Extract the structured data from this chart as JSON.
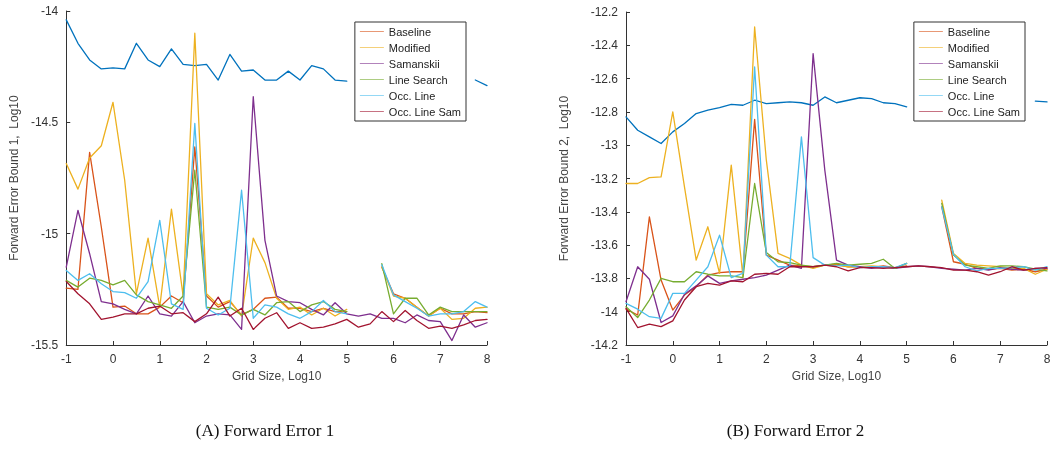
{
  "chart_data": [
    {
      "type": "line",
      "title": "(A) Forward Error 1",
      "xlabel": "Grid Size, Log10",
      "ylabel": "Forward Error Bound 1,  Log10",
      "legend": "top right",
      "grid": false,
      "marker": "none",
      "line_style": "solid",
      "xlim": [
        -1,
        8
      ],
      "xticks": [
        -1,
        0,
        1,
        2,
        3,
        4,
        5,
        6,
        7,
        8
      ],
      "ylim": [
        -15.5,
        -14
      ],
      "yticks": [
        -15.5,
        -15,
        -14.5,
        -14
      ],
      "x": [
        -1,
        -0.75,
        -0.5,
        -0.25,
        0,
        0.25,
        0.5,
        0.75,
        1,
        1.25,
        1.5,
        1.75,
        2,
        2.25,
        2.5,
        2.75,
        3,
        3.25,
        3.5,
        3.75,
        4,
        4.25,
        4.5,
        4.75,
        5,
        5.25,
        5.5,
        5.75,
        6,
        6.25,
        6.5,
        6.75,
        7,
        7.25,
        7.5,
        7.75,
        8
      ],
      "series": [
        {
          "color": "#0072bd",
          "values": [
            -14.04,
            -14.145,
            -14.22,
            -14.26,
            -14.255,
            -14.26,
            -14.145,
            -14.22,
            -14.25,
            -14.17,
            -14.24,
            -14.245,
            -14.24,
            -14.31,
            -14.195,
            -14.27,
            -14.265,
            -14.31,
            -14.31,
            -14.27,
            -14.31,
            -14.245,
            -14.26,
            -14.31,
            -14.315,
            null,
            null,
            null,
            null,
            null,
            null,
            null,
            null,
            null,
            null,
            -14.31,
            -14.335
          ]
        },
        {
          "name": "Baseline",
          "color": "#d95319",
          "values": [
            -15.245,
            -15.25,
            -14.635,
            -14.97,
            -15.33,
            -15.325,
            -15.36,
            -15.36,
            -15.33,
            -15.28,
            -15.31,
            -14.61,
            -15.28,
            -15.33,
            -15.305,
            -15.365,
            -15.34,
            -15.29,
            -15.285,
            -15.335,
            -15.335,
            -15.35,
            -15.335,
            -15.35,
            -15.35,
            null,
            null,
            -15.15,
            -15.27,
            -15.29,
            -15.33,
            -15.37,
            -15.335,
            -15.36,
            -15.36,
            -15.35,
            -15.355
          ]
        },
        {
          "name": "Modified",
          "color": "#edb120",
          "values": [
            -14.685,
            -14.8,
            -14.66,
            -14.605,
            -14.41,
            -14.76,
            -15.27,
            -15.02,
            -15.33,
            -14.89,
            -15.28,
            -14.1,
            -15.27,
            -15.32,
            -15.3,
            -15.37,
            -15.02,
            -15.13,
            -15.29,
            -15.34,
            -15.33,
            -15.365,
            -15.335,
            -15.37,
            -15.34,
            null,
            null,
            -15.15,
            -15.28,
            -15.29,
            -15.33,
            -15.37,
            -15.335,
            -15.385,
            -15.38,
            -15.335,
            -15.33
          ]
        },
        {
          "name": "Samanskii",
          "color": "#7e2f8e",
          "values": [
            -15.15,
            -14.895,
            -15.09,
            -15.305,
            -15.315,
            -15.34,
            -15.36,
            -15.28,
            -15.36,
            -15.37,
            -15.305,
            -15.4,
            -15.37,
            -15.36,
            -15.365,
            -15.43,
            -14.385,
            -15.03,
            -15.28,
            -15.305,
            -15.31,
            -15.34,
            -15.365,
            -15.31,
            -15.36,
            -15.37,
            -15.36,
            -15.38,
            -15.38,
            -15.4,
            -15.365,
            -15.39,
            -15.395,
            -15.48,
            -15.365,
            -15.42,
            -15.4
          ]
        },
        {
          "name": "Line Search",
          "color": "#77ac30",
          "values": [
            -15.21,
            -15.24,
            -15.2,
            -15.21,
            -15.23,
            -15.21,
            -15.275,
            -15.305,
            -15.32,
            -15.335,
            -15.28,
            -14.715,
            -15.33,
            -15.34,
            -15.33,
            -15.365,
            -15.34,
            -15.365,
            -15.31,
            -15.305,
            -15.35,
            -15.32,
            -15.305,
            -15.34,
            -15.35,
            null,
            null,
            -15.135,
            -15.36,
            -15.29,
            -15.29,
            -15.365,
            -15.33,
            -15.35,
            -15.35,
            -15.35,
            -15.35
          ]
        },
        {
          "name": "Occ. Line",
          "color": "#4dbeee",
          "values": [
            -15.165,
            -15.21,
            -15.18,
            -15.225,
            -15.26,
            -15.265,
            -15.29,
            -15.215,
            -14.94,
            -15.315,
            -15.34,
            -14.505,
            -15.335,
            -15.365,
            -15.335,
            -14.805,
            -15.38,
            -15.32,
            -15.33,
            -15.36,
            -15.38,
            -15.35,
            -15.3,
            -15.35,
            -15.36,
            null,
            null,
            -15.14,
            -15.275,
            -15.305,
            -15.335,
            -15.37,
            -15.36,
            -15.36,
            -15.35,
            -15.305,
            -15.33
          ]
        },
        {
          "name": "Occ. Line Sam",
          "color": "#a2142f",
          "values": [
            -15.215,
            -15.27,
            -15.315,
            -15.385,
            -15.375,
            -15.36,
            -15.36,
            -15.335,
            -15.325,
            -15.36,
            -15.355,
            -15.395,
            -15.36,
            -15.285,
            -15.37,
            -15.335,
            -15.43,
            -15.38,
            -15.355,
            -15.425,
            -15.4,
            -15.425,
            -15.42,
            -15.405,
            -15.385,
            -15.42,
            -15.405,
            -15.35,
            -15.395,
            -15.345,
            -15.39,
            -15.425,
            -15.415,
            -15.425,
            -15.41,
            -15.39,
            -15.385
          ]
        }
      ]
    },
    {
      "type": "line",
      "title": "(B) Forward Error 2",
      "xlabel": "Grid Size, Log10",
      "ylabel": "Forward Error Bound 2,  Log10",
      "legend": "top right",
      "grid": false,
      "marker": "none",
      "line_style": "solid",
      "xlim": [
        -1,
        8
      ],
      "xticks": [
        -1,
        0,
        1,
        2,
        3,
        4,
        5,
        6,
        7,
        8
      ],
      "ylim": [
        -14.2,
        -12.2
      ],
      "yticks": [
        -14.2,
        -14,
        -13.8,
        -13.6,
        -13.4,
        -13.2,
        -13,
        -12.8,
        -12.6,
        -12.4,
        -12.2
      ],
      "x": [
        -1,
        -0.75,
        -0.5,
        -0.25,
        0,
        0.25,
        0.5,
        0.75,
        1,
        1.25,
        1.5,
        1.75,
        2,
        2.25,
        2.5,
        2.75,
        3,
        3.25,
        3.5,
        3.75,
        4,
        4.25,
        4.5,
        4.75,
        5,
        5.25,
        5.5,
        5.75,
        6,
        6.25,
        6.5,
        6.75,
        7,
        7.25,
        7.5,
        7.75,
        8
      ],
      "series": [
        {
          "color": "#0072bd",
          "values": [
            -12.83,
            -12.91,
            -12.95,
            -12.99,
            -12.92,
            -12.87,
            -12.81,
            -12.79,
            -12.775,
            -12.755,
            -12.76,
            -12.73,
            -12.75,
            -12.745,
            -12.74,
            -12.745,
            -12.76,
            -12.71,
            -12.745,
            -12.73,
            -12.715,
            -12.72,
            -12.745,
            -12.75,
            -12.77,
            null,
            null,
            null,
            null,
            null,
            null,
            null,
            null,
            null,
            null,
            -12.735,
            -12.74
          ]
        },
        {
          "name": "Baseline",
          "color": "#d95319",
          "values": [
            -13.985,
            -14.02,
            -13.43,
            -13.81,
            -13.99,
            -13.9,
            -13.85,
            -13.78,
            -13.765,
            -13.76,
            -13.76,
            -12.845,
            -13.66,
            -13.69,
            -13.72,
            -13.725,
            -13.73,
            -13.72,
            -13.715,
            -13.73,
            -13.73,
            -13.735,
            -13.725,
            -13.735,
            -13.725,
            null,
            null,
            -13.37,
            -13.7,
            -13.715,
            -13.74,
            -13.745,
            -13.74,
            -13.75,
            -13.745,
            -13.76,
            -13.745
          ]
        },
        {
          "name": "Modified",
          "color": "#edb120",
          "values": [
            -13.23,
            -13.23,
            -13.195,
            -13.19,
            -12.8,
            -13.25,
            -13.69,
            -13.49,
            -13.77,
            -13.12,
            -13.79,
            -12.29,
            -13.09,
            -13.65,
            -13.68,
            -13.72,
            -13.74,
            -13.72,
            -13.72,
            -13.73,
            -13.73,
            -13.725,
            -13.73,
            -13.74,
            -13.71,
            null,
            null,
            -13.33,
            -13.65,
            -13.71,
            -13.72,
            -13.725,
            -13.73,
            -13.74,
            -13.74,
            -13.775,
            -13.745
          ]
        },
        {
          "name": "Samanskii",
          "color": "#7e2f8e",
          "values": [
            -13.94,
            -13.73,
            -13.805,
            -14.065,
            -14.025,
            -13.895,
            -13.845,
            -13.785,
            -13.83,
            -13.815,
            -13.805,
            -13.795,
            -13.78,
            -13.75,
            -13.72,
            -13.74,
            -12.45,
            -13.15,
            -13.69,
            -13.72,
            -13.73,
            -13.74,
            -13.73,
            -13.74,
            -13.73,
            -13.725,
            -13.73,
            -13.74,
            -13.745,
            -13.75,
            -13.74,
            -13.75,
            -13.735,
            -13.745,
            -13.75,
            -13.74,
            -13.74
          ]
        },
        {
          "name": "Line Search",
          "color": "#77ac30",
          "values": [
            -13.97,
            -14.035,
            -13.93,
            -13.8,
            -13.82,
            -13.82,
            -13.76,
            -13.775,
            -13.785,
            -13.785,
            -13.795,
            -13.23,
            -13.645,
            -13.7,
            -13.705,
            -13.72,
            -13.73,
            -13.72,
            -13.71,
            -13.72,
            -13.715,
            -13.71,
            -13.685,
            -13.74,
            -13.71,
            null,
            null,
            -13.35,
            -13.66,
            -13.72,
            -13.73,
            -13.74,
            -13.725,
            -13.725,
            -13.73,
            -13.745,
            -13.755
          ]
        },
        {
          "name": "Occ. Line",
          "color": "#4dbeee",
          "values": [
            -13.95,
            -13.985,
            -14.03,
            -14.04,
            -13.89,
            -13.89,
            -13.81,
            -13.73,
            -13.54,
            -13.795,
            -13.77,
            -12.53,
            -13.66,
            -13.73,
            -13.73,
            -12.95,
            -13.675,
            -13.72,
            -13.725,
            -13.72,
            -13.735,
            -13.73,
            -13.73,
            -13.735,
            -13.71,
            null,
            null,
            -13.37,
            -13.655,
            -13.73,
            -13.755,
            -13.74,
            -13.74,
            -13.735,
            -13.73,
            -13.75,
            -13.73
          ]
        },
        {
          "name": "Occ. Line Sam",
          "color": "#a2142f",
          "values": [
            -13.98,
            -14.095,
            -14.075,
            -14.09,
            -14.055,
            -13.93,
            -13.85,
            -13.83,
            -13.84,
            -13.815,
            -13.82,
            -13.775,
            -13.77,
            -13.775,
            -13.73,
            -13.73,
            -13.73,
            -13.72,
            -13.73,
            -13.755,
            -13.735,
            -13.735,
            -13.74,
            -13.735,
            -13.73,
            -13.725,
            -13.73,
            -13.735,
            -13.75,
            -13.75,
            -13.76,
            -13.78,
            -13.76,
            -13.73,
            -13.75,
            -13.74,
            -13.735
          ]
        }
      ]
    }
  ]
}
